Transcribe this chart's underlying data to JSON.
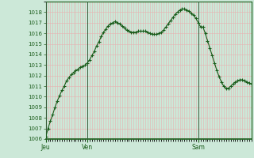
{
  "background_color": "#cce8d8",
  "grid_color": "#e8b0b0",
  "line_color": "#1a5c1a",
  "marker_color": "#1a5c1a",
  "axis_label_color": "#1a5c1a",
  "tick_label_color": "#1a5c1a",
  "ylim": [
    1006,
    1019
  ],
  "yticks": [
    1006,
    1007,
    1008,
    1009,
    1010,
    1011,
    1012,
    1013,
    1014,
    1015,
    1016,
    1017,
    1018
  ],
  "day_labels": [
    "Jeu",
    "Ven",
    "Sam"
  ],
  "day_positions": [
    0,
    18,
    66
  ],
  "total_points": 90,
  "values": [
    1006.2,
    1007.0,
    1007.7,
    1008.3,
    1009.0,
    1009.6,
    1010.1,
    1010.6,
    1011.0,
    1011.5,
    1011.8,
    1012.1,
    1012.3,
    1012.5,
    1012.6,
    1012.8,
    1012.9,
    1013.0,
    1013.2,
    1013.5,
    1013.9,
    1014.3,
    1014.8,
    1015.2,
    1015.7,
    1016.1,
    1016.4,
    1016.7,
    1016.9,
    1017.0,
    1017.1,
    1017.0,
    1016.9,
    1016.7,
    1016.5,
    1016.3,
    1016.2,
    1016.1,
    1016.1,
    1016.1,
    1016.2,
    1016.2,
    1016.2,
    1016.2,
    1016.1,
    1016.0,
    1015.9,
    1015.9,
    1015.9,
    1016.0,
    1016.1,
    1016.3,
    1016.6,
    1016.9,
    1017.2,
    1017.5,
    1017.8,
    1018.0,
    1018.2,
    1018.3,
    1018.3,
    1018.2,
    1018.1,
    1017.9,
    1017.7,
    1017.4,
    1017.0,
    1016.6,
    1016.6,
    1016.0,
    1015.3,
    1014.6,
    1013.9,
    1013.2,
    1012.5,
    1011.9,
    1011.4,
    1011.0,
    1010.8,
    1010.8,
    1011.0,
    1011.2,
    1011.4,
    1011.5,
    1011.6,
    1011.6,
    1011.5,
    1011.4,
    1011.3,
    1011.2
  ]
}
